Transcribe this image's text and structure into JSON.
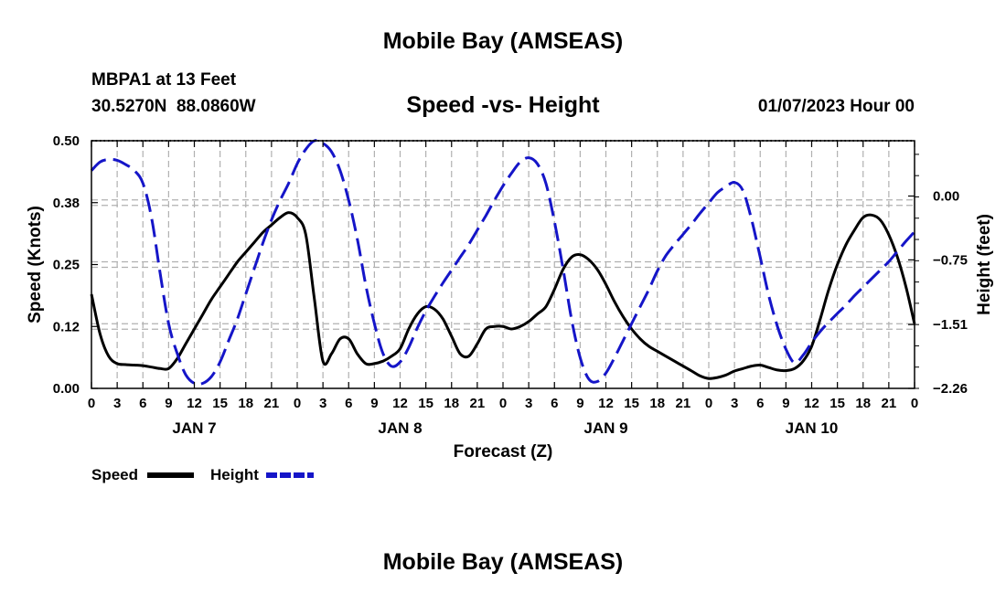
{
  "header": {
    "title": "Mobile Bay (AMSEAS)",
    "station": "MBPA1 at 13 Feet",
    "coords": "30.5270N  88.0860W",
    "run": "01/07/2023 Hour 00",
    "bottom_title": "Mobile Bay (AMSEAS)"
  },
  "legend": {
    "speed_label": "Speed",
    "height_label": "Height"
  },
  "colors": {
    "speed": "#000000",
    "height": "#1515c8",
    "grid": "#b0b0b0"
  },
  "chart_data": {
    "type": "line",
    "title": "Speed -vs- Height",
    "xlabel": "Forecast (Z)",
    "ylabel": "Speed (Knots)",
    "y2label": "Height (feet)",
    "xlim": [
      0,
      96
    ],
    "ylim": [
      0,
      0.5
    ],
    "y2lim": [
      -2.26,
      0.65
    ],
    "x_ticks": [
      0,
      3,
      6,
      9,
      12,
      15,
      18,
      21,
      24,
      27,
      30,
      33,
      36,
      39,
      42,
      45,
      48,
      51,
      54,
      57,
      60,
      63,
      66,
      69,
      72,
      75,
      78,
      81,
      84,
      87,
      90,
      93,
      96
    ],
    "x_tick_labels": [
      "0",
      "3",
      "6",
      "9",
      "12",
      "15",
      "18",
      "21",
      "0",
      "3",
      "6",
      "9",
      "12",
      "15",
      "18",
      "21",
      "0",
      "3",
      "6",
      "9",
      "12",
      "15",
      "18",
      "21",
      "0",
      "3",
      "6",
      "9",
      "12",
      "15",
      "18",
      "21",
      "0"
    ],
    "day_labels": [
      {
        "x": 12,
        "label": "JAN 7"
      },
      {
        "x": 36,
        "label": "JAN 8"
      },
      {
        "x": 60,
        "label": "JAN 9"
      },
      {
        "x": 84,
        "label": "JAN 10"
      }
    ],
    "y_ticks": [
      0.0,
      0.125,
      0.25,
      0.375,
      0.5
    ],
    "y_tick_labels": [
      "0.00",
      "0.12",
      "0.25",
      "0.38",
      "0.50"
    ],
    "y2_ticks": [
      0.0,
      -0.75,
      -1.51,
      -2.26
    ],
    "y2_tick_labels": [
      "0.00",
      "−0.75",
      "−1.51",
      "−2.26"
    ],
    "series": [
      {
        "name": "Speed",
        "axis": "left",
        "style": "solid",
        "x": [
          0,
          1,
          2,
          3,
          4,
          5,
          6,
          7,
          8,
          9,
          10,
          11,
          12,
          13,
          14,
          15,
          16,
          17,
          18,
          19,
          20,
          21,
          22,
          23,
          24,
          25,
          26,
          27,
          28,
          29,
          30,
          31,
          32,
          33,
          34,
          35,
          36,
          37,
          38,
          39,
          40,
          41,
          42,
          43,
          44,
          45,
          46,
          47,
          48,
          49,
          50,
          51,
          52,
          53,
          54,
          55,
          56,
          57,
          58,
          59,
          60,
          61,
          62,
          63,
          64,
          65,
          66,
          67,
          68,
          69,
          70,
          71,
          72,
          73,
          74,
          75,
          76,
          77,
          78,
          79,
          80,
          81,
          82,
          83,
          84,
          85,
          86,
          87,
          88,
          89,
          90,
          91,
          92,
          93,
          94,
          95,
          96
        ],
        "y": [
          0.19,
          0.11,
          0.065,
          0.05,
          0.048,
          0.047,
          0.046,
          0.043,
          0.04,
          0.04,
          0.06,
          0.09,
          0.12,
          0.15,
          0.18,
          0.205,
          0.23,
          0.255,
          0.275,
          0.295,
          0.315,
          0.33,
          0.345,
          0.355,
          0.345,
          0.31,
          0.18,
          0.055,
          0.07,
          0.1,
          0.1,
          0.07,
          0.05,
          0.05,
          0.055,
          0.065,
          0.08,
          0.12,
          0.15,
          0.165,
          0.16,
          0.14,
          0.105,
          0.07,
          0.065,
          0.09,
          0.12,
          0.125,
          0.125,
          0.12,
          0.125,
          0.135,
          0.15,
          0.165,
          0.2,
          0.24,
          0.265,
          0.27,
          0.26,
          0.24,
          0.21,
          0.175,
          0.145,
          0.12,
          0.1,
          0.085,
          0.075,
          0.065,
          0.055,
          0.045,
          0.035,
          0.025,
          0.02,
          0.022,
          0.027,
          0.035,
          0.04,
          0.045,
          0.047,
          0.042,
          0.037,
          0.036,
          0.04,
          0.055,
          0.085,
          0.14,
          0.2,
          0.25,
          0.29,
          0.32,
          0.345,
          0.35,
          0.34,
          0.31,
          0.265,
          0.205,
          0.13
        ]
      },
      {
        "name": "Height",
        "axis": "right",
        "style": "dashed",
        "x": [
          0,
          1,
          2,
          3,
          4,
          5,
          6,
          7,
          8,
          9,
          10,
          11,
          12,
          13,
          14,
          15,
          16,
          17,
          18,
          19,
          20,
          21,
          22,
          23,
          24,
          25,
          26,
          27,
          28,
          29,
          30,
          31,
          32,
          33,
          34,
          35,
          36,
          37,
          38,
          39,
          40,
          41,
          42,
          43,
          44,
          45,
          46,
          47,
          48,
          49,
          50,
          51,
          52,
          53,
          54,
          55,
          56,
          57,
          58,
          59,
          60,
          61,
          62,
          63,
          64,
          65,
          66,
          67,
          68,
          69,
          70,
          71,
          72,
          73,
          74,
          75,
          76,
          77,
          78,
          79,
          80,
          81,
          82,
          83,
          84,
          85,
          86,
          87,
          88,
          89,
          90,
          91,
          92,
          93,
          94,
          95,
          96
        ],
        "y": [
          0.3,
          0.4,
          0.43,
          0.42,
          0.37,
          0.3,
          0.15,
          -0.25,
          -0.9,
          -1.5,
          -1.85,
          -2.1,
          -2.2,
          -2.2,
          -2.12,
          -1.95,
          -1.7,
          -1.45,
          -1.15,
          -0.85,
          -0.55,
          -0.28,
          -0.05,
          0.15,
          0.38,
          0.55,
          0.65,
          0.62,
          0.52,
          0.3,
          -0.05,
          -0.5,
          -1.05,
          -1.5,
          -1.85,
          -2.0,
          -1.95,
          -1.78,
          -1.55,
          -1.35,
          -1.18,
          -1.02,
          -0.87,
          -0.72,
          -0.57,
          -0.4,
          -0.23,
          -0.05,
          0.12,
          0.27,
          0.4,
          0.45,
          0.38,
          0.15,
          -0.3,
          -0.85,
          -1.45,
          -1.9,
          -2.15,
          -2.18,
          -2.08,
          -1.9,
          -1.7,
          -1.5,
          -1.3,
          -1.1,
          -0.88,
          -0.7,
          -0.57,
          -0.45,
          -0.33,
          -0.2,
          -0.08,
          0.04,
          0.11,
          0.16,
          0.06,
          -0.28,
          -0.72,
          -1.17,
          -1.53,
          -1.8,
          -1.96,
          -1.87,
          -1.72,
          -1.59,
          -1.48,
          -1.38,
          -1.28,
          -1.17,
          -1.07,
          -0.97,
          -0.87,
          -0.77,
          -0.65,
          -0.53,
          -0.42
        ]
      }
    ],
    "grid": true,
    "legend": "bottom-left"
  }
}
